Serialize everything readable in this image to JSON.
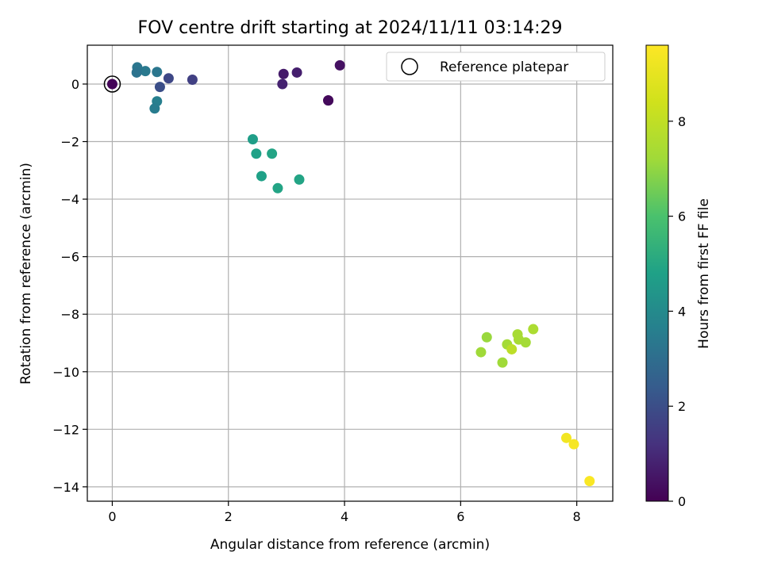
{
  "chart_data": {
    "type": "scatter",
    "title": "FOV centre drift starting at 2024/11/11 03:14:29",
    "xlabel": "Angular distance from reference (arcmin)",
    "ylabel": "Rotation from reference (arcmin)",
    "xlim": [
      -0.43,
      8.62
    ],
    "ylim": [
      -14.5,
      1.35
    ],
    "xticks": [
      0,
      2,
      4,
      6,
      8
    ],
    "yticks": [
      0,
      -2,
      -4,
      -6,
      -8,
      -10,
      -12,
      -14
    ],
    "xtick_labels": [
      "0",
      "2",
      "4",
      "6",
      "8"
    ],
    "ytick_labels": [
      "0",
      "−2",
      "−4",
      "−6",
      "−8",
      "−10",
      "−12",
      "−14"
    ],
    "grid": true,
    "colormap": "viridis",
    "colorbar": {
      "label": "Hours from first FF file",
      "range": [
        0,
        9.6
      ],
      "ticks": [
        0,
        2,
        4,
        6,
        8
      ],
      "tick_labels": [
        "0",
        "2",
        "4",
        "6",
        "8"
      ]
    },
    "legend": {
      "position": "top-right",
      "entries": [
        "Reference platepar"
      ]
    },
    "reference_point": {
      "x": 0,
      "y": 0
    },
    "points": [
      {
        "x": 0.0,
        "y": 0.0,
        "c": 0.1
      },
      {
        "x": 3.92,
        "y": 0.65,
        "c": 0.4
      },
      {
        "x": 2.95,
        "y": 0.35,
        "c": 0.6
      },
      {
        "x": 3.18,
        "y": 0.4,
        "c": 0.7
      },
      {
        "x": 2.93,
        "y": 0.0,
        "c": 0.8
      },
      {
        "x": 3.72,
        "y": -0.57,
        "c": 0.3
      },
      {
        "x": 3.72,
        "y": -0.57,
        "c": 0.2
      },
      {
        "x": 1.38,
        "y": 0.15,
        "c": 1.6
      },
      {
        "x": 0.97,
        "y": 0.2,
        "c": 1.8
      },
      {
        "x": 0.82,
        "y": -0.1,
        "c": 2.0
      },
      {
        "x": 0.77,
        "y": 0.42,
        "c": 3.3
      },
      {
        "x": 0.57,
        "y": 0.45,
        "c": 3.4
      },
      {
        "x": 0.43,
        "y": 0.58,
        "c": 3.3
      },
      {
        "x": 0.42,
        "y": 0.4,
        "c": 3.2
      },
      {
        "x": 0.77,
        "y": -0.6,
        "c": 3.6
      },
      {
        "x": 0.73,
        "y": -0.85,
        "c": 3.5
      },
      {
        "x": 2.42,
        "y": -1.92,
        "c": 4.7
      },
      {
        "x": 2.48,
        "y": -2.42,
        "c": 4.8
      },
      {
        "x": 2.75,
        "y": -2.42,
        "c": 4.9
      },
      {
        "x": 2.57,
        "y": -3.2,
        "c": 4.8
      },
      {
        "x": 2.85,
        "y": -3.62,
        "c": 4.9
      },
      {
        "x": 3.22,
        "y": -3.32,
        "c": 4.9
      },
      {
        "x": 6.45,
        "y": -8.8,
        "c": 7.1
      },
      {
        "x": 6.35,
        "y": -9.32,
        "c": 7.2
      },
      {
        "x": 6.8,
        "y": -9.05,
        "c": 7.3
      },
      {
        "x": 6.98,
        "y": -8.7,
        "c": 7.4
      },
      {
        "x": 7.0,
        "y": -8.88,
        "c": 7.4
      },
      {
        "x": 7.25,
        "y": -8.52,
        "c": 7.5
      },
      {
        "x": 7.12,
        "y": -8.98,
        "c": 7.3
      },
      {
        "x": 6.88,
        "y": -9.22,
        "c": 7.9
      },
      {
        "x": 6.72,
        "y": -9.68,
        "c": 7.2
      },
      {
        "x": 7.82,
        "y": -12.3,
        "c": 9.3
      },
      {
        "x": 7.95,
        "y": -12.52,
        "c": 9.4
      },
      {
        "x": 8.22,
        "y": -13.8,
        "c": 9.5
      }
    ]
  }
}
